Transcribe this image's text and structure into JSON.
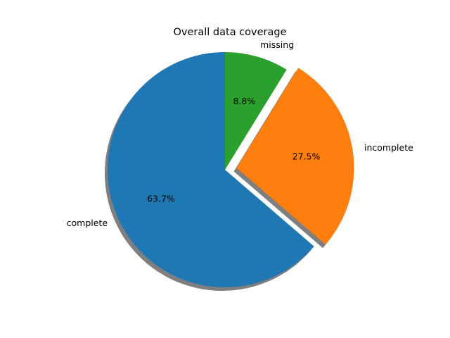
{
  "chart_data": {
    "type": "pie",
    "title": "Overall data coverage",
    "slices": [
      {
        "label": "complete",
        "value": 63.7,
        "pct_label": "63.7%",
        "color": "#1f77b4",
        "exploded": false
      },
      {
        "label": "incomplete",
        "value": 27.5,
        "pct_label": "27.5%",
        "color": "#ff7f0e",
        "exploded": true
      },
      {
        "label": "missing",
        "value": 8.8,
        "pct_label": "8.8%",
        "color": "#2ca02c",
        "exploded": false
      }
    ],
    "start_angle_deg": 90,
    "direction": "counterclockwise",
    "shadow": true,
    "legend": "none"
  }
}
